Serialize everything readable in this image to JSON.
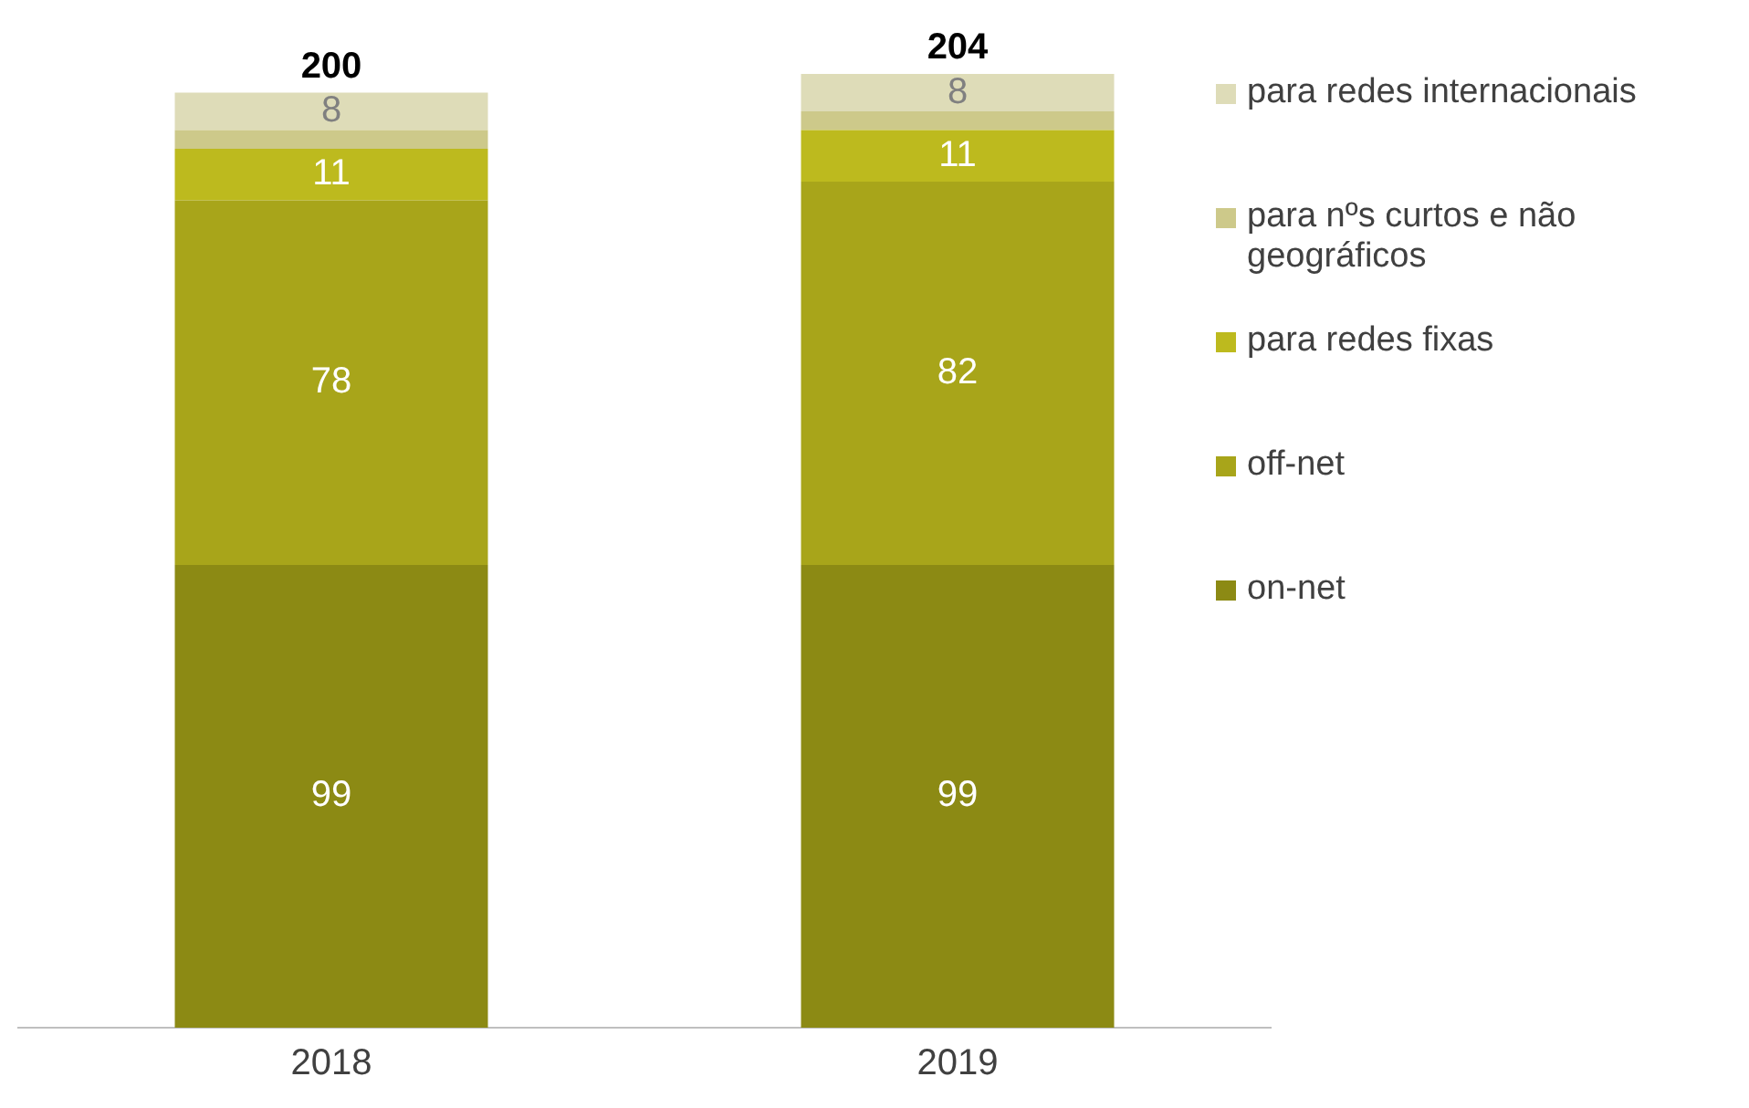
{
  "chart_data": {
    "type": "bar",
    "stacked": true,
    "categories": [
      "2018",
      "2019"
    ],
    "series": [
      {
        "name": "on-net",
        "color": "#8c8a14",
        "values": [
          99,
          99
        ],
        "value_labels": [
          "99",
          "99"
        ]
      },
      {
        "name": "off-net",
        "color": "#a8a51a",
        "values": [
          78,
          82
        ],
        "value_labels": [
          "78",
          "82"
        ]
      },
      {
        "name": "para redes fixas",
        "color": "#bdba1e",
        "values": [
          11,
          11
        ],
        "value_labels": [
          "11",
          "11"
        ]
      },
      {
        "name": "para nºs curtos e não geográficos",
        "color": "#cdc98a",
        "values": [
          4,
          4
        ],
        "value_labels": [
          null,
          null
        ]
      },
      {
        "name": "para redes internacionais",
        "color": "#dedcb8",
        "values": [
          8,
          8
        ],
        "value_labels": [
          "8",
          "8"
        ]
      }
    ],
    "totals": [
      "200",
      "204"
    ],
    "ylim": [
      0,
      205
    ],
    "tick_labels": "x",
    "legend": "right"
  }
}
